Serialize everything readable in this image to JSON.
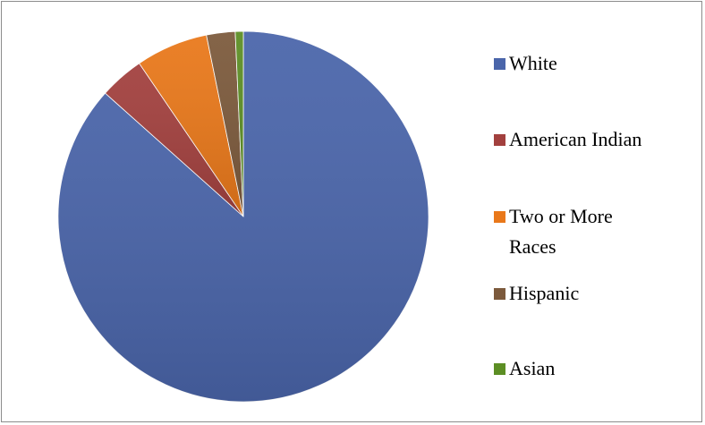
{
  "chart_data": {
    "type": "pie",
    "title": "",
    "legend_position": "right",
    "start_angle_deg": 0,
    "direction": "clockwise",
    "categories": [
      "White",
      "American Indian",
      "Two or More Races",
      "Hispanic",
      "Asian"
    ],
    "legend_labels": [
      "White",
      "American Indian",
      "Two or More\nRaces",
      "Hispanic",
      "Asian"
    ],
    "values": [
      86.6,
      3.9,
      6.3,
      2.5,
      0.7
    ],
    "colors": [
      "#4A65AA",
      "#A2403E",
      "#E9781A",
      "#7C5A3C",
      "#5C8E24"
    ]
  }
}
